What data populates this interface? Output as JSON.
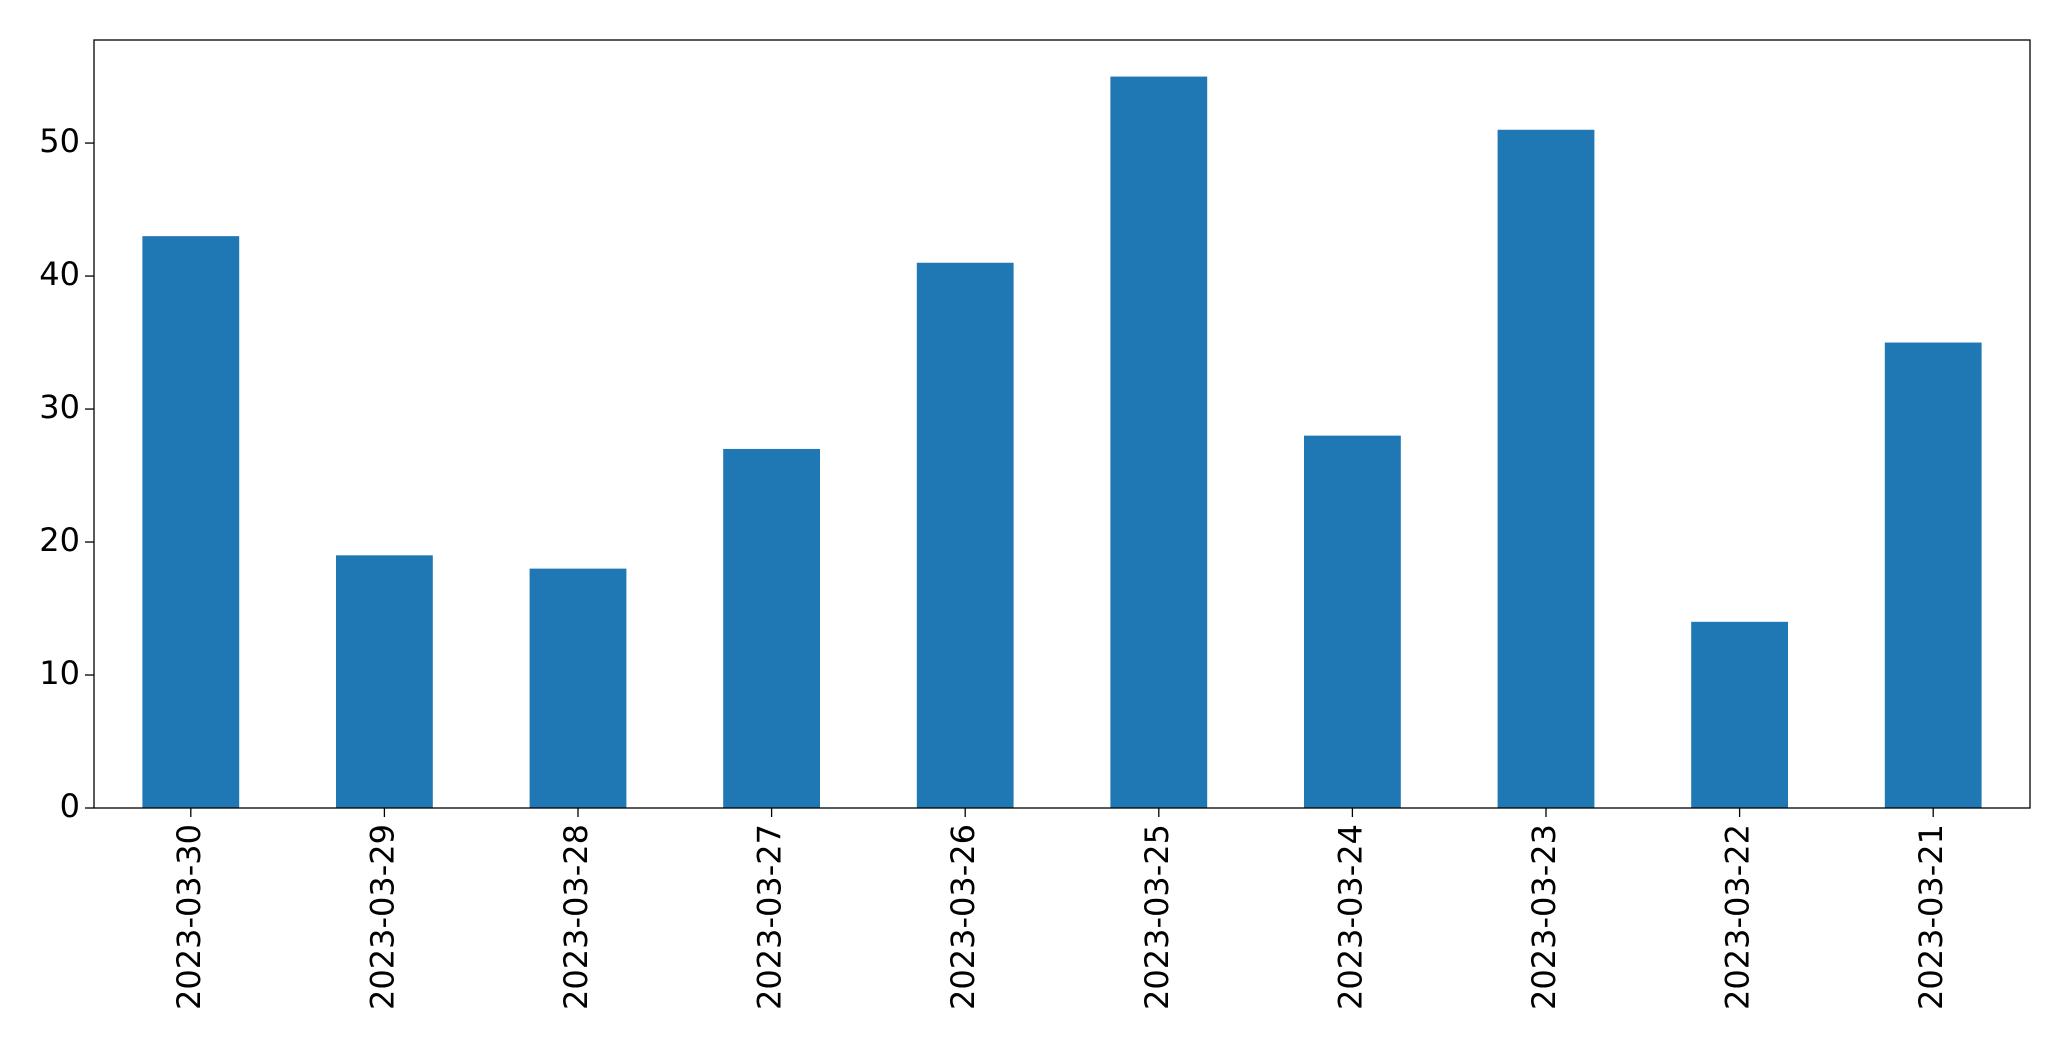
{
  "chart_data": {
    "type": "bar",
    "categories": [
      "2023-03-30",
      "2023-03-29",
      "2023-03-28",
      "2023-03-27",
      "2023-03-26",
      "2023-03-25",
      "2023-03-24",
      "2023-03-23",
      "2023-03-22",
      "2023-03-21"
    ],
    "values": [
      43,
      19,
      18,
      27,
      41,
      55,
      28,
      51,
      14,
      35
    ],
    "color": "#1f77b4",
    "ylim": [
      0,
      57.75
    ],
    "yticks": [
      0,
      10,
      20,
      30,
      40,
      50
    ],
    "grid": false
  }
}
